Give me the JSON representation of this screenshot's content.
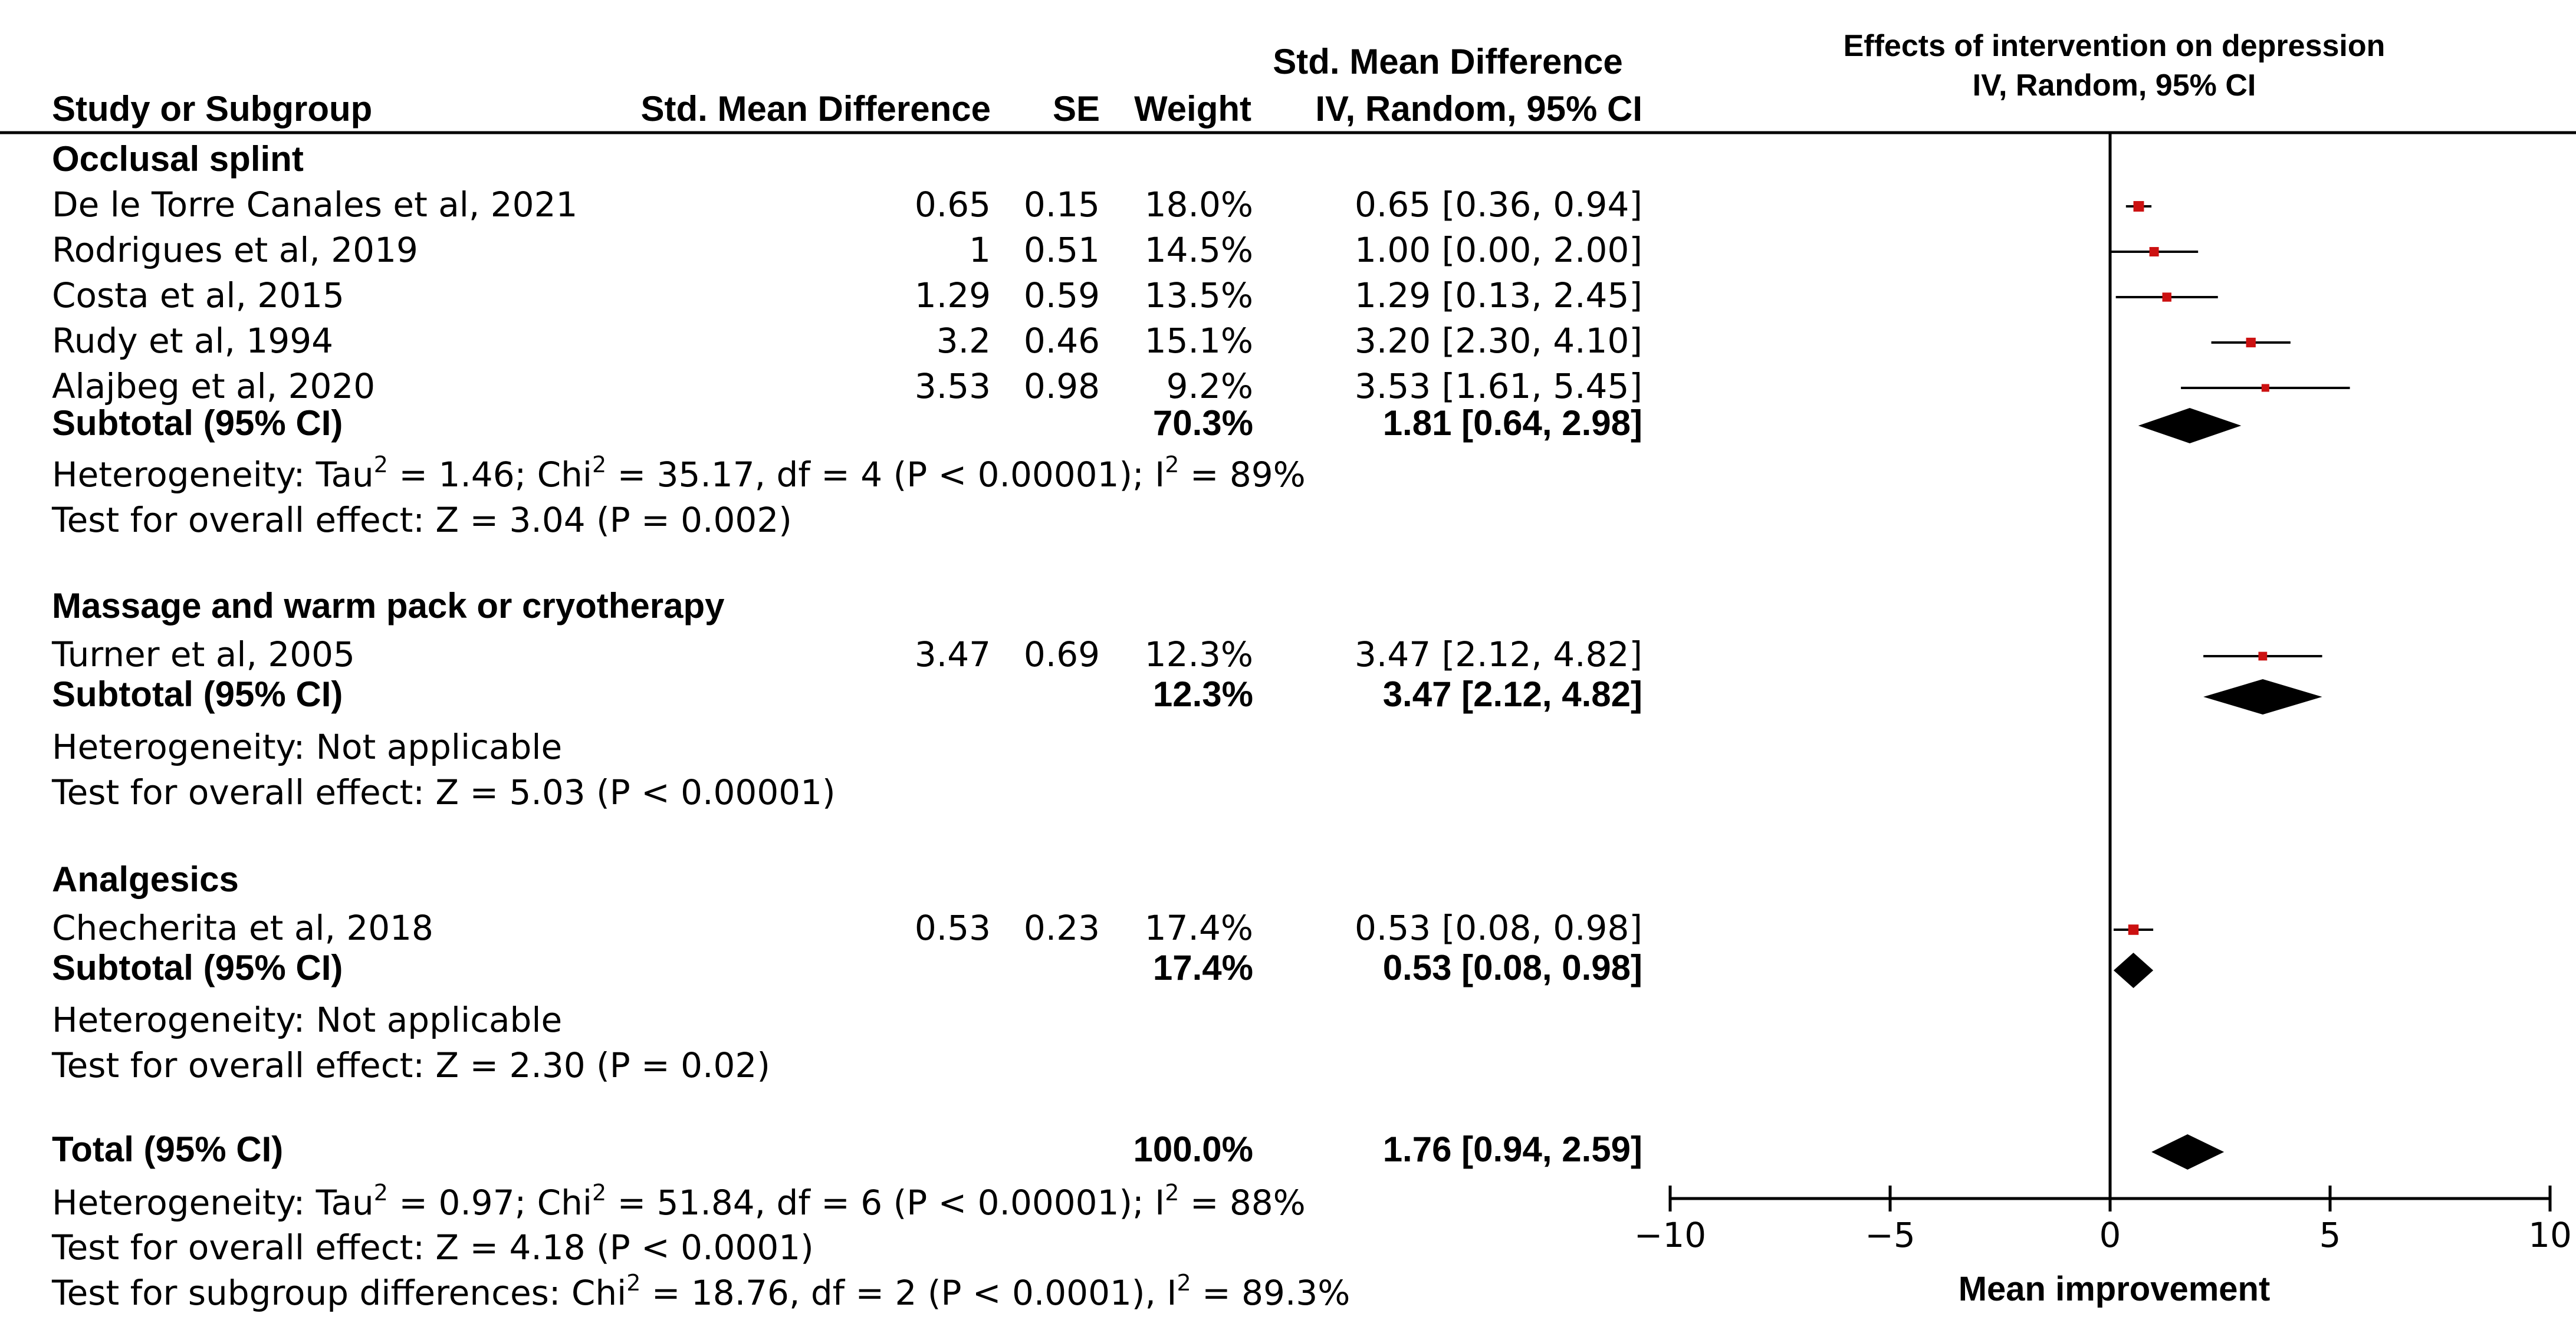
{
  "chart_data": {
    "type": "forest",
    "title": "Effects of intervention on depression",
    "subtitle": "IV, Random, 95% CI",
    "xlabel": "Mean improvement",
    "xlim": [
      -10,
      10
    ],
    "xticks": [
      -10,
      -5,
      0,
      5,
      10
    ],
    "xtick_labels": [
      "−10",
      "−5",
      "0",
      "5",
      "10"
    ],
    "columns": {
      "study": "Study or Subgroup",
      "smd": "Std. Mean Difference",
      "se": "SE",
      "weight": "Weight",
      "ci_line1": "Std. Mean Difference",
      "ci_line2": "IV, Random, 95% CI"
    },
    "groups": [
      {
        "name": "Occlusal splint",
        "studies": [
          {
            "label": "De le Torre Canales et al, 2021",
            "smd_text": "0.65",
            "se": "0.15",
            "weight": "18.0%",
            "ci_text": "0.65 [0.36, 0.94]",
            "est": 0.65,
            "lo": 0.36,
            "hi": 0.94,
            "w": 18.0
          },
          {
            "label": "Rodrigues et al, 2019",
            "smd_text": "1",
            "se": "0.51",
            "weight": "14.5%",
            "ci_text": "1.00 [0.00, 2.00]",
            "est": 1.0,
            "lo": 0.0,
            "hi": 2.0,
            "w": 14.5
          },
          {
            "label": "Costa et al, 2015",
            "smd_text": "1.29",
            "se": "0.59",
            "weight": "13.5%",
            "ci_text": "1.29 [0.13, 2.45]",
            "est": 1.29,
            "lo": 0.13,
            "hi": 2.45,
            "w": 13.5
          },
          {
            "label": "Rudy et al, 1994",
            "smd_text": "3.2",
            "se": "0.46",
            "weight": "15.1%",
            "ci_text": "3.20 [2.30, 4.10]",
            "est": 3.2,
            "lo": 2.3,
            "hi": 4.1,
            "w": 15.1
          },
          {
            "label": "Alajbeg et al, 2020",
            "smd_text": "3.53",
            "se": "0.98",
            "weight": "9.2%",
            "ci_text": "3.53 [1.61, 5.45]",
            "est": 3.53,
            "lo": 1.61,
            "hi": 5.45,
            "w": 9.2
          }
        ],
        "subtotal": {
          "label": "Subtotal (95% CI)",
          "weight": "70.3%",
          "ci_text": "1.81 [0.64, 2.98]",
          "est": 1.81,
          "lo": 0.64,
          "hi": 2.98
        },
        "heterogeneity": {
          "pre": "Heterogeneity: Tau",
          "mid1": " = 1.46; Chi",
          "mid2": " = 35.17, df = 4 (P < 0.00001); I",
          "post": " = 89%"
        },
        "overall": "Test for overall effect: Z = 3.04 (P = 0.002)"
      },
      {
        "name": "Massage and warm pack or cryotherapy",
        "studies": [
          {
            "label": "Turner et al, 2005",
            "smd_text": "3.47",
            "se": "0.69",
            "weight": "12.3%",
            "ci_text": "3.47 [2.12, 4.82]",
            "est": 3.47,
            "lo": 2.12,
            "hi": 4.82,
            "w": 12.3
          }
        ],
        "subtotal": {
          "label": "Subtotal (95% CI)",
          "weight": "12.3%",
          "ci_text": "3.47 [2.12, 4.82]",
          "est": 3.47,
          "lo": 2.12,
          "hi": 4.82
        },
        "heterogeneity_text": "Heterogeneity: Not applicable",
        "overall": "Test for overall effect: Z = 5.03 (P < 0.00001)"
      },
      {
        "name": "Analgesics",
        "studies": [
          {
            "label": "Checherita et al, 2018",
            "smd_text": "0.53",
            "se": "0.23",
            "weight": "17.4%",
            "ci_text": "0.53 [0.08, 0.98]",
            "est": 0.53,
            "lo": 0.08,
            "hi": 0.98,
            "w": 17.4
          }
        ],
        "subtotal": {
          "label": "Subtotal (95% CI)",
          "weight": "17.4%",
          "ci_text": "0.53 [0.08, 0.98]",
          "est": 0.53,
          "lo": 0.08,
          "hi": 0.98
        },
        "heterogeneity_text": "Heterogeneity: Not applicable",
        "overall": "Test for overall effect: Z = 2.30 (P = 0.02)"
      }
    ],
    "total": {
      "label": "Total (95% CI)",
      "weight": "100.0%",
      "ci_text": "1.76 [0.94, 2.59]",
      "est": 1.76,
      "lo": 0.94,
      "hi": 2.59,
      "heterogeneity": {
        "pre": "Heterogeneity: Tau",
        "mid1": " = 0.97; Chi",
        "mid2": " = 51.84, df = 6 (P < 0.00001); I",
        "post": " = 88%"
      },
      "overall": "Test for overall effect: Z = 4.18 (P < 0.0001)",
      "subgroup": {
        "pre": "Test for subgroup differences: Chi",
        "mid": " = 18.76, df = 2 (P < 0.0001), I",
        "post": " = 89.3%"
      }
    },
    "superscript": "2",
    "colors": {
      "study_marker": "#cc1111",
      "diamond": "#000000",
      "line": "#000000"
    }
  }
}
